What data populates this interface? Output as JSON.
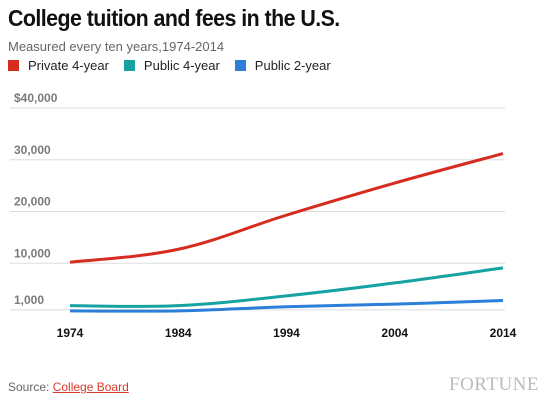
{
  "chart_data": {
    "type": "line",
    "title": "College tuition and fees in the U.S.",
    "subtitle": "Measured every ten years,1974-2014",
    "x": [
      "1974",
      "1984",
      "1994",
      "2004",
      "2014"
    ],
    "series": [
      {
        "name": "Private 4-year",
        "color": "#d62b1f",
        "values": [
          10200,
          12700,
          19300,
          25500,
          31200
        ]
      },
      {
        "name": "Public 4-year",
        "color": "#17a2a2",
        "values": [
          1800,
          1800,
          3700,
          6200,
          9100
        ]
      },
      {
        "name": "Public 2-year",
        "color": "#2b7fd9",
        "values": [
          800,
          800,
          1600,
          2100,
          2800
        ]
      }
    ],
    "ytick_values": [
      1000,
      10000,
      20000,
      30000,
      40000
    ],
    "ytick_labels": [
      "1,000",
      "10,000",
      "20,000",
      "30,000",
      "$40,000"
    ],
    "xlabel": "",
    "ylabel": "",
    "ylim": [
      0,
      40000
    ],
    "grid": true,
    "legend_position": "top-left"
  },
  "footer": {
    "source_prefix": "Source: ",
    "source_link": "College Board",
    "brand": "FORTUNE"
  }
}
